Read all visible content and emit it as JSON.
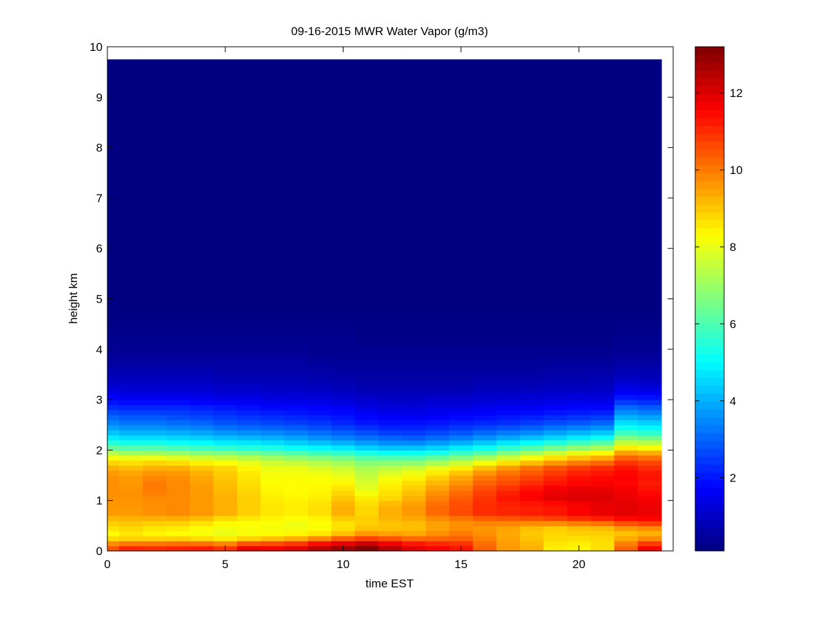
{
  "chart_data": {
    "type": "heatmap",
    "title": "09-16-2015 MWR Water Vapor (g/m3)",
    "xlabel": "time EST",
    "ylabel": "height km",
    "xlim": [
      0,
      24
    ],
    "ylim": [
      0,
      10
    ],
    "x_ticks": [
      "0",
      "5",
      "10",
      "15",
      "20"
    ],
    "y_ticks": [
      "0",
      "1",
      "2",
      "3",
      "4",
      "5",
      "6",
      "7",
      "8",
      "9",
      "10"
    ],
    "colorbar": {
      "colormap": "jet",
      "range": [
        0.1,
        13.2
      ],
      "ticks": [
        "2",
        "4",
        "6",
        "8",
        "10",
        "12"
      ]
    },
    "x_start": 0,
    "x_step": 1,
    "x_end": 23.5,
    "profile_heights": [
      0,
      0.1,
      0.2,
      0.35,
      0.5,
      0.6,
      0.75,
      0.9,
      1.05,
      1.2,
      1.35,
      1.5,
      1.65,
      1.8,
      1.95,
      2.1,
      2.25,
      2.4,
      2.55,
      2.7,
      2.85,
      3.0,
      3.2,
      3.4,
      3.6,
      3.8,
      4.0,
      4.25,
      4.5,
      5.0,
      6.0,
      7.0,
      8.0,
      9.0,
      9.75
    ],
    "profiles": [
      [
        10.5,
        10.5,
        9.0,
        8.3,
        8.8,
        9.0,
        9.6,
        9.6,
        9.7,
        9.7,
        9.7,
        9.7,
        9.3,
        8.6,
        7.3,
        5.8,
        4.8,
        4.0,
        3.4,
        2.9,
        2.3,
        1.8,
        1.3,
        0.9,
        0.7,
        0.5,
        0.4,
        0.3,
        0.2,
        0.1,
        0.1,
        0.1,
        0.1,
        0.1,
        0.1
      ],
      [
        11.1,
        11.1,
        9.0,
        8.6,
        8.9,
        9.1,
        9.6,
        9.6,
        9.7,
        9.7,
        9.6,
        9.6,
        9.1,
        8.5,
        7.0,
        5.6,
        4.6,
        3.8,
        3.2,
        2.7,
        2.2,
        1.7,
        1.2,
        0.9,
        0.7,
        0.5,
        0.4,
        0.3,
        0.2,
        0.1,
        0.1,
        0.1,
        0.1,
        0.1,
        0.1
      ],
      [
        11.0,
        11.0,
        9.1,
        8.4,
        8.7,
        9.1,
        9.7,
        9.7,
        9.8,
        10.0,
        10.0,
        9.8,
        9.3,
        8.6,
        7.0,
        5.6,
        4.6,
        3.8,
        3.2,
        2.7,
        2.2,
        1.7,
        1.2,
        0.9,
        0.7,
        0.5,
        0.4,
        0.3,
        0.2,
        0.1,
        0.1,
        0.1,
        0.1,
        0.1,
        0.1
      ],
      [
        11.1,
        11.1,
        9.2,
        8.3,
        8.6,
        9.1,
        9.8,
        9.8,
        9.8,
        9.8,
        9.8,
        9.7,
        9.3,
        8.4,
        6.9,
        5.4,
        4.5,
        3.7,
        3.1,
        2.6,
        2.2,
        1.7,
        1.2,
        0.9,
        0.7,
        0.5,
        0.4,
        0.3,
        0.2,
        0.1,
        0.1,
        0.1,
        0.1,
        0.1,
        0.1
      ],
      [
        11.2,
        11.2,
        9.0,
        8.2,
        8.4,
        8.9,
        9.6,
        9.6,
        9.6,
        9.6,
        9.5,
        9.4,
        9.0,
        8.2,
        6.7,
        5.3,
        4.4,
        3.6,
        3.0,
        2.5,
        2.1,
        1.6,
        1.2,
        0.9,
        0.7,
        0.5,
        0.4,
        0.3,
        0.2,
        0.1,
        0.1,
        0.1,
        0.1,
        0.1,
        0.1
      ],
      [
        10.9,
        10.9,
        8.8,
        8.0,
        8.2,
        8.5,
        9.3,
        9.3,
        9.3,
        9.2,
        9.1,
        9.0,
        8.8,
        8.0,
        6.6,
        5.1,
        4.2,
        3.4,
        2.8,
        2.4,
        2.0,
        1.5,
        1.1,
        0.8,
        0.6,
        0.5,
        0.4,
        0.3,
        0.2,
        0.1,
        0.1,
        0.1,
        0.1,
        0.1,
        0.1
      ],
      [
        11.8,
        11.8,
        9.2,
        8.2,
        8.2,
        8.4,
        8.9,
        8.9,
        8.9,
        8.8,
        8.7,
        8.6,
        8.4,
        7.8,
        6.4,
        5.0,
        4.1,
        3.3,
        2.7,
        2.3,
        1.9,
        1.5,
        1.1,
        0.8,
        0.6,
        0.5,
        0.4,
        0.3,
        0.2,
        0.1,
        0.1,
        0.1,
        0.1,
        0.1,
        0.1
      ],
      [
        11.7,
        11.7,
        9.5,
        8.3,
        8.1,
        8.3,
        8.6,
        8.6,
        8.5,
        8.4,
        8.3,
        8.2,
        8.0,
        7.5,
        6.2,
        4.9,
        4.0,
        3.2,
        2.6,
        2.2,
        1.8,
        1.4,
        1.0,
        0.8,
        0.6,
        0.5,
        0.4,
        0.3,
        0.2,
        0.1,
        0.1,
        0.1,
        0.1,
        0.1,
        0.1
      ],
      [
        11.9,
        11.9,
        9.8,
        8.4,
        8.0,
        8.2,
        8.5,
        8.5,
        8.4,
        8.3,
        8.3,
        8.2,
        8.0,
        7.3,
        6.0,
        4.7,
        3.8,
        3.1,
        2.5,
        2.1,
        1.8,
        1.4,
        1.0,
        0.8,
        0.6,
        0.5,
        0.4,
        0.3,
        0.2,
        0.1,
        0.1,
        0.1,
        0.1,
        0.1,
        0.1
      ],
      [
        12.4,
        12.4,
        10.4,
        8.6,
        8.2,
        8.3,
        8.7,
        8.7,
        8.5,
        8.4,
        8.3,
        8.2,
        7.8,
        7.1,
        5.8,
        4.5,
        3.6,
        2.9,
        2.4,
        2.0,
        1.7,
        1.3,
        1.0,
        0.7,
        0.6,
        0.4,
        0.3,
        0.3,
        0.2,
        0.1,
        0.1,
        0.1,
        0.1,
        0.1,
        0.1
      ],
      [
        12.8,
        12.8,
        11.0,
        9.1,
        8.5,
        8.8,
        9.3,
        9.3,
        9.0,
        8.7,
        8.4,
        8.0,
        7.6,
        6.9,
        5.6,
        4.3,
        3.4,
        2.7,
        2.2,
        1.9,
        1.6,
        1.2,
        0.9,
        0.7,
        0.5,
        0.4,
        0.3,
        0.3,
        0.2,
        0.1,
        0.1,
        0.1,
        0.1,
        0.1,
        0.1
      ],
      [
        13.2,
        13.2,
        11.3,
        9.6,
        8.8,
        9.0,
        8.8,
        8.8,
        8.5,
        8.0,
        7.8,
        7.5,
        7.2,
        6.5,
        5.3,
        4.0,
        3.2,
        2.5,
        2.0,
        1.7,
        1.4,
        1.1,
        0.8,
        0.6,
        0.5,
        0.4,
        0.3,
        0.2,
        0.2,
        0.1,
        0.1,
        0.1,
        0.1,
        0.1,
        0.1
      ],
      [
        12.5,
        12.5,
        11.0,
        9.5,
        8.9,
        9.2,
        9.3,
        9.3,
        8.8,
        8.6,
        8.4,
        8.0,
        7.4,
        6.5,
        5.1,
        3.8,
        3.0,
        2.3,
        1.9,
        1.6,
        1.3,
        1.0,
        0.8,
        0.6,
        0.5,
        0.4,
        0.3,
        0.2,
        0.2,
        0.1,
        0.1,
        0.1,
        0.1,
        0.1,
        0.1
      ],
      [
        11.9,
        11.9,
        10.6,
        9.4,
        9.0,
        9.3,
        9.6,
        9.6,
        9.3,
        9.0,
        8.7,
        8.3,
        7.6,
        6.5,
        5.1,
        3.8,
        2.9,
        2.3,
        1.9,
        1.5,
        1.3,
        1.0,
        0.8,
        0.6,
        0.5,
        0.4,
        0.3,
        0.2,
        0.2,
        0.1,
        0.1,
        0.1,
        0.1,
        0.1,
        0.1
      ],
      [
        11.6,
        11.6,
        10.5,
        9.7,
        9.4,
        9.6,
        10.2,
        10.2,
        9.9,
        9.6,
        9.2,
        8.8,
        8.0,
        6.8,
        5.3,
        4.0,
        3.1,
        2.4,
        2.0,
        1.6,
        1.4,
        1.1,
        0.8,
        0.6,
        0.5,
        0.4,
        0.3,
        0.2,
        0.2,
        0.1,
        0.1,
        0.1,
        0.1,
        0.1,
        0.1
      ],
      [
        11.3,
        11.3,
        10.5,
        10.0,
        9.6,
        9.8,
        10.6,
        10.6,
        10.4,
        10.1,
        9.7,
        9.3,
        8.5,
        7.2,
        5.7,
        4.3,
        3.3,
        2.6,
        2.1,
        1.7,
        1.4,
        1.1,
        0.8,
        0.6,
        0.5,
        0.4,
        0.3,
        0.2,
        0.2,
        0.1,
        0.1,
        0.1,
        0.1,
        0.1,
        0.1
      ],
      [
        10.3,
        10.3,
        10.0,
        9.7,
        9.6,
        10.1,
        11.0,
        11.0,
        10.9,
        10.7,
        10.3,
        9.9,
        9.1,
        7.7,
        6.1,
        4.7,
        3.6,
        2.8,
        2.2,
        1.8,
        1.5,
        1.2,
        0.9,
        0.7,
        0.5,
        0.4,
        0.3,
        0.2,
        0.2,
        0.1,
        0.1,
        0.1,
        0.1,
        0.1,
        0.1
      ],
      [
        9.6,
        9.6,
        9.5,
        9.4,
        9.5,
        10.2,
        11.1,
        11.1,
        11.3,
        11.1,
        10.6,
        10.3,
        9.6,
        8.2,
        6.6,
        5.1,
        3.9,
        3.0,
        2.3,
        1.9,
        1.6,
        1.2,
        0.9,
        0.7,
        0.5,
        0.4,
        0.3,
        0.2,
        0.2,
        0.1,
        0.1,
        0.1,
        0.1,
        0.1,
        0.1
      ],
      [
        9.3,
        9.3,
        9.1,
        9.0,
        9.2,
        10.3,
        11.2,
        11.2,
        11.6,
        11.5,
        11.0,
        10.6,
        10.1,
        8.7,
        7.1,
        5.5,
        4.2,
        3.2,
        2.5,
        2.0,
        1.6,
        1.3,
        0.9,
        0.7,
        0.5,
        0.4,
        0.3,
        0.2,
        0.2,
        0.1,
        0.1,
        0.1,
        0.1,
        0.1,
        0.1
      ],
      [
        8.5,
        8.5,
        8.7,
        8.8,
        9.0,
        10.5,
        11.3,
        11.3,
        11.9,
        11.8,
        11.3,
        11.0,
        10.5,
        9.2,
        7.6,
        5.9,
        4.5,
        3.5,
        2.7,
        2.1,
        1.7,
        1.3,
        1.0,
        0.7,
        0.6,
        0.4,
        0.3,
        0.2,
        0.2,
        0.1,
        0.1,
        0.1,
        0.1,
        0.1,
        0.1
      ],
      [
        8.4,
        8.4,
        8.6,
        8.9,
        9.2,
        10.7,
        11.6,
        11.6,
        12.0,
        11.9,
        11.5,
        11.3,
        10.8,
        9.6,
        8.0,
        6.3,
        4.8,
        3.7,
        2.8,
        2.2,
        1.8,
        1.4,
        1.0,
        0.7,
        0.6,
        0.4,
        0.3,
        0.2,
        0.2,
        0.1,
        0.1,
        0.1,
        0.1,
        0.1,
        0.1
      ],
      [
        8.7,
        8.7,
        8.7,
        8.9,
        9.3,
        10.9,
        11.8,
        11.8,
        12.0,
        11.9,
        11.6,
        11.4,
        11.0,
        9.9,
        8.3,
        6.6,
        5.1,
        3.9,
        3.0,
        2.3,
        1.8,
        1.4,
        1.0,
        0.8,
        0.6,
        0.4,
        0.3,
        0.2,
        0.2,
        0.1,
        0.1,
        0.1,
        0.1,
        0.1,
        0.1
      ],
      [
        10.3,
        10.3,
        9.5,
        9.1,
        9.8,
        11.3,
        11.9,
        11.9,
        11.8,
        11.7,
        11.5,
        11.6,
        11.3,
        10.7,
        9.5,
        8.0,
        6.6,
        5.4,
        4.6,
        3.8,
        3.1,
        2.2,
        1.5,
        1.0,
        0.7,
        0.5,
        0.4,
        0.3,
        0.2,
        0.1,
        0.1,
        0.1,
        0.1,
        0.1,
        0.1
      ],
      [
        11.6,
        11.6,
        10.0,
        9.3,
        10.0,
        11.5,
        11.8,
        11.8,
        11.6,
        11.4,
        11.2,
        11.4,
        11.0,
        10.5,
        9.3,
        7.8,
        6.4,
        5.2,
        4.4,
        3.6,
        2.9,
        2.1,
        1.4,
        0.9,
        0.7,
        0.5,
        0.4,
        0.3,
        0.2,
        0.1,
        0.1,
        0.1,
        0.1,
        0.1,
        0.1
      ]
    ]
  }
}
